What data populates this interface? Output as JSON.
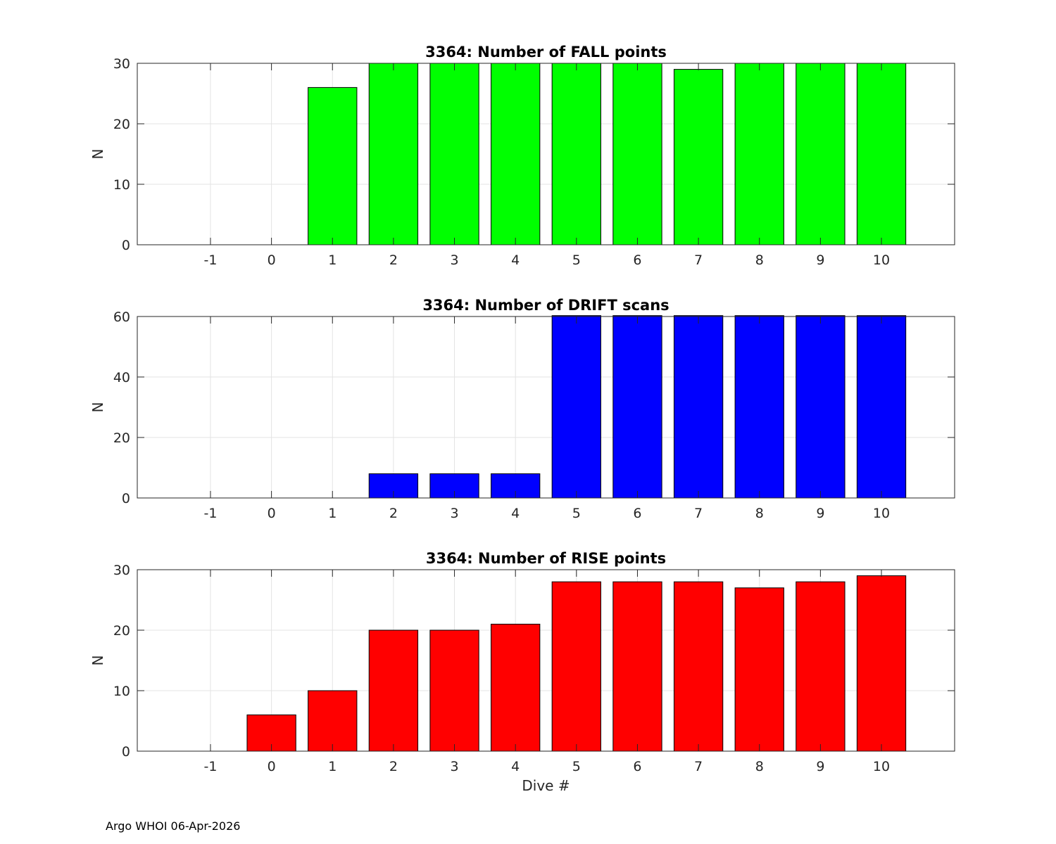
{
  "footer": {
    "note": "Argo WHOI 06-Apr-2026"
  },
  "chart_data": [
    {
      "type": "bar",
      "title": "3364: Number of FALL points",
      "xlabel": "",
      "ylabel": "N",
      "color": "#00ff00",
      "xlim": [
        -2.2,
        11.2
      ],
      "ylim": [
        0,
        30
      ],
      "yticks": [
        0,
        10,
        20,
        30
      ],
      "xticks": [
        -1,
        0,
        1,
        2,
        3,
        4,
        5,
        6,
        7,
        8,
        9,
        10
      ],
      "grid": true,
      "categories": [
        1,
        2,
        3,
        4,
        5,
        6,
        7,
        8,
        9,
        10
      ],
      "values": [
        26,
        30,
        30,
        30,
        30,
        30,
        29,
        30,
        30,
        30
      ]
    },
    {
      "type": "bar",
      "title": "3364: Number of DRIFT scans",
      "xlabel": "",
      "ylabel": "N",
      "color": "#0000ff",
      "xlim": [
        -2.2,
        11.2
      ],
      "ylim": [
        0,
        60
      ],
      "yticks": [
        0,
        20,
        40,
        60
      ],
      "xticks": [
        -1,
        0,
        1,
        2,
        3,
        4,
        5,
        6,
        7,
        8,
        9,
        10
      ],
      "grid": true,
      "categories": [
        2,
        3,
        4,
        5,
        6,
        7,
        8,
        9,
        10
      ],
      "values": [
        8,
        8,
        8,
        61,
        61,
        61,
        61,
        61,
        61
      ]
    },
    {
      "type": "bar",
      "title": "3364: Number of RISE points",
      "xlabel": "Dive #",
      "ylabel": "N",
      "color": "#ff0000",
      "xlim": [
        -2.2,
        11.2
      ],
      "ylim": [
        0,
        30
      ],
      "yticks": [
        0,
        10,
        20,
        30
      ],
      "xticks": [
        -1,
        0,
        1,
        2,
        3,
        4,
        5,
        6,
        7,
        8,
        9,
        10
      ],
      "grid": true,
      "categories": [
        0,
        1,
        2,
        3,
        4,
        5,
        6,
        7,
        8,
        9,
        10
      ],
      "values": [
        6,
        10,
        20,
        20,
        21,
        28,
        28,
        28,
        27,
        28,
        29
      ]
    }
  ]
}
